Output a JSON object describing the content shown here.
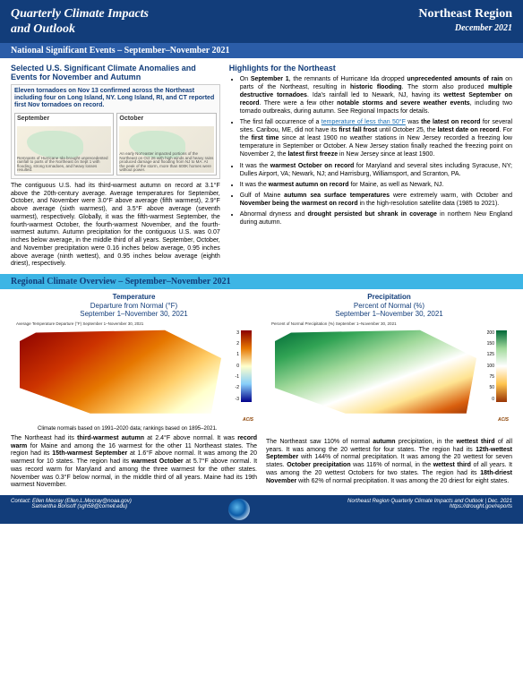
{
  "header": {
    "title_l1": "Quarterly Climate Impacts",
    "title_l2": "and Outlook",
    "region": "Northeast Region",
    "date": "December 2021"
  },
  "section1": {
    "title": "National Significant Events – September–November 2021"
  },
  "selected_box": {
    "title": "Selected U.S. Significant Climate Anomalies and Events for November and Autumn",
    "text": "Eleven tornadoes on Nov 13 confirmed across the Northeast including four on Long Island, NY. Long Island, RI, and CT reported first Nov tornadoes on record.",
    "month1": "September",
    "month1_desc": "Remnants of Hurricane Ida brought unprecedented rainfall to parts of the Northeast on Sept 1 with flooding, strong tornadoes, and heavy losses resulted.",
    "month2": "October",
    "month2_desc": "An early Nor'easter impacted portions of the Northeast on Oct 26 with high winds and heavy rains produced damage and flooding from NJ to MA. At the peak of the storm, more than 600K homes were without power."
  },
  "para_left": "The contiguous U.S. had its third-warmest autumn on record at 3.1°F above the 20th-century average. Average temperatures for September, October, and November were 3.0°F above average (fifth warmest), 2.9°F above average (sixth warmest), and 3.5°F above average (seventh warmest), respectively. Globally, it was the fifth-warmest September, the fourth-warmest October, the fourth-warmest November, and the fourth-warmest autumn. Autumn precipitation for the contiguous U.S. was 0.07 inches below average, in the middle third of all years. September, October, and November precipitation were 0.16 inches below average, 0.95 inches above average (ninth wettest), and 0.95 inches below average (eighth driest), respectively.",
  "highlights": {
    "title": "Highlights for the Northeast",
    "items": [
      "On <b>September 1</b>, the remnants of Hurricane Ida dropped <b>unprecedented amounts of rain</b> on parts of the Northeast, resulting in <b>historic flooding</b>. The storm also produced <b>multiple destructive tornadoes</b>. Ida's rainfall led to Newark, NJ, having its <b>wettest September on record</b>. There were a few other <b>notable storms and severe weather events</b>, including two tornado outbreaks, during autumn. See Regional Impacts for details.",
      "The first fall occurrence of a <span class='link'>temperature of less than 50°F</span> was <b>the latest on record</b> for several sites. Caribou, ME, did not have its <b>first fall frost</b> until October 25, the <b>latest date on record</b>. For the <b>first time</b> since at least 1900 no weather stations in New Jersey recorded a freezing low temperature in September or October. A New Jersey station finally reached the freezing point on November 2, the <b>latest first freeze</b> in New Jersey since at least 1900.",
      "It was the <b>warmest October on record</b> for Maryland and several sites including Syracuse, NY; Dulles Airport, VA; Newark, NJ; and Harrisburg, Williamsport, and Scranton, PA.",
      "It was the <b>warmest autumn on record</b> for Maine, as well as Newark, NJ.",
      "Gulf of Maine <b>autumn sea surface temperatures</b> were extremely warm, with October and <b>November being the warmest on record</b> in the high-resolution satellite data (1985 to 2021).",
      "Abnormal dryness and <b>drought persisted but shrank in coverage</b> in northern New England during autumn."
    ]
  },
  "section2": {
    "title": "Regional Climate Overview – September–November 2021"
  },
  "charts": {
    "temp": {
      "title": "Temperature",
      "sub1": "Departure from Normal (°F)",
      "sub2": "September 1–November 30, 2021",
      "caption": "Average Temperature Departure (°F)\nSeptember 1–November 30, 2021",
      "ticks": [
        "3",
        "2",
        "1",
        "0",
        "-1",
        "-2",
        "-3"
      ]
    },
    "precip": {
      "title": "Precipitation",
      "sub1": "Percent of Normal (%)",
      "sub2": "September 1–November 30, 2021",
      "caption": "Percent of Normal Precipitation (%)\nSeptember 1–November 30, 2021",
      "ticks": [
        "200",
        "150",
        "125",
        "100",
        "75",
        "50",
        "0"
      ]
    },
    "note": "Climate normals based on 1991–2020 data; rankings based on 1895–2021.",
    "logo": "ACIS"
  },
  "para_temp": "The Northeast had its <b>third-warmest autumn</b> at 2.4°F above normal. It was <b>record warm</b> for Maine and among the 16 warmest for the other 11 Northeast states. The region had its <b>15th-warmest September</b> at 1.6°F above normal. It was among the 20 warmest for 10 states. The region had its <b>warmest October</b> at 5.7°F above normal. It was record warm for Maryland and among the three warmest for the other states. November was 0.3°F below normal, in the middle third of all years. Maine had its 19th warmest November.",
  "para_precip": "The Northeast saw 110% of normal <b>autumn</b> precipitation, in the <b>wettest third</b> of all years. It was among the 20 wettest for four states. The region had its <b>12th-wettest September</b> with 144% of normal precipitation. It was among the 20 wettest for seven states. <b>October precipitation</b> was 116% of normal, in the <b>wettest third</b> of all years. It was among the 20 wettest Octobers for two states. The region had its <b>18th-driest November</b> with 62% of normal precipitation. It was among the 20 driest for eight states.",
  "footer": {
    "contact_label": "Contact:",
    "c1": "Ellen Mecray (Ellen.L.Mecray@noaa.gov)",
    "c2": "Samantha Borisoff (sgh58@cornell.edu)",
    "r1": "Northeast Region Quarterly Climate Impacts and Outlook | Dec. 2021",
    "r2": "https://drought.gov/reports"
  }
}
